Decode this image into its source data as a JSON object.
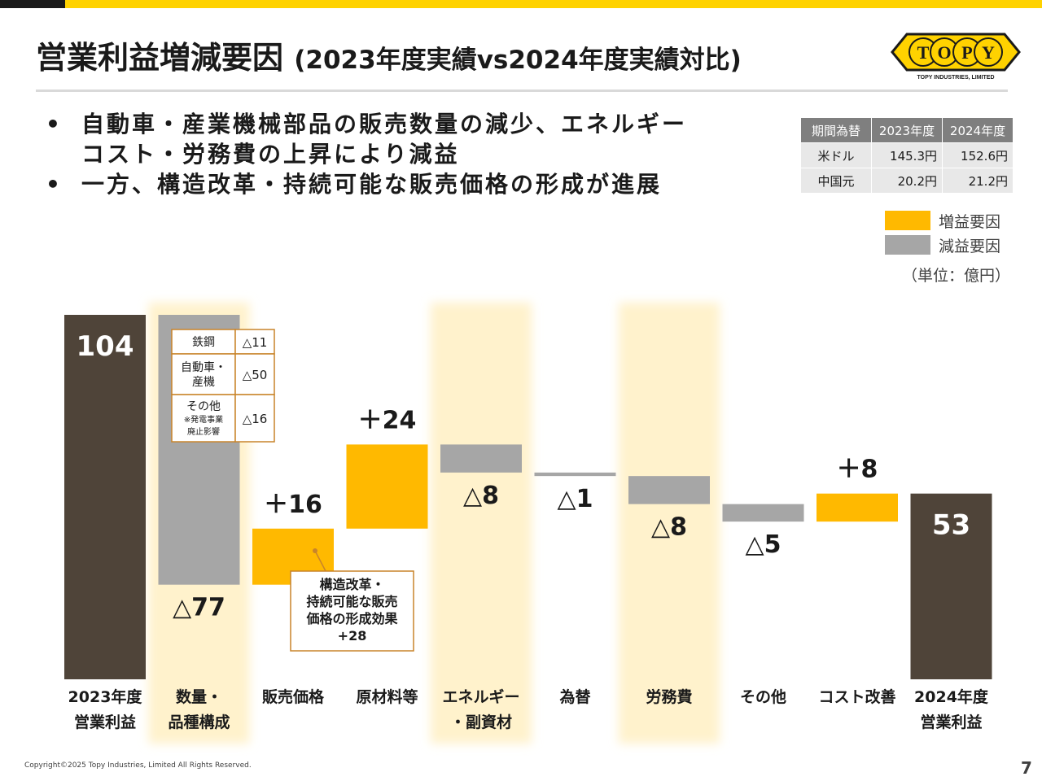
{
  "title": "営業利益増減要因",
  "subtitle": "(2023年度実績vs2024年度実績対比)",
  "logo": {
    "name": "TOPY",
    "tagline": "TOPY INDUSTRIES, LIMITED"
  },
  "bullets": [
    "自動車・産業機械部品の販売数量の減少、エネルギーコスト・労務費の上昇により減益",
    "一方、構造改革・持続可能な販売価格の形成が進展"
  ],
  "bullet_lines": [
    "自動車・産業機械部品の販売数量の減少、エネルギー",
    "コスト・労務費の上昇により減益",
    "一方、構造改革・持続可能な販売価格の形成が進展"
  ],
  "fx_table": {
    "headers": [
      "期間為替",
      "2023年度",
      "2024年度"
    ],
    "rows": [
      [
        "米ドル",
        "145.3円",
        "152.6円"
      ],
      [
        "中国元",
        "20.2円",
        "21.2円"
      ]
    ]
  },
  "legend": [
    {
      "label": "増益要因",
      "color": "#ffb900"
    },
    {
      "label": "減益要因",
      "color": "#a6a6a6"
    }
  ],
  "unit": "（単位：億円）",
  "colors": {
    "total": "#4f4439",
    "increase": "#ffb900",
    "decrease": "#a6a6a6",
    "highlight": "#fff2cc",
    "callout_border": "#c8842a"
  },
  "chart_data": {
    "type": "bar",
    "subtype": "waterfall",
    "categories": [
      [
        "2023年度",
        "営業利益"
      ],
      [
        "数量・",
        "品種構成"
      ],
      [
        "販売価格"
      ],
      [
        "原材料等"
      ],
      [
        "エネルギー",
        "・副資材"
      ],
      [
        "為替"
      ],
      [
        "労務費"
      ],
      [
        "その他"
      ],
      [
        "コスト改善"
      ],
      [
        "2024年度",
        "営業利益"
      ]
    ],
    "values": [
      104,
      -77,
      16,
      24,
      -8,
      -1,
      -8,
      -5,
      8,
      53
    ],
    "kinds": [
      "total",
      "decrease",
      "increase",
      "increase",
      "decrease",
      "decrease",
      "decrease",
      "decrease",
      "increase",
      "total"
    ],
    "value_labels": [
      "104",
      "△77",
      "＋16",
      "＋24",
      "△8",
      "△1",
      "△8",
      "△5",
      "＋8",
      "53"
    ],
    "highlighted_categories": [
      1,
      4,
      6
    ],
    "ylim": [
      0,
      104
    ],
    "breakdown": {
      "category": "数量・品種構成",
      "rows": [
        {
          "label": [
            "鉄鋼"
          ],
          "value": "△11"
        },
        {
          "label": [
            "自動車・",
            "産機"
          ],
          "value": "△50"
        },
        {
          "label": [
            "その他",
            "※発電事業",
            "廃止影響"
          ],
          "value": "△16"
        }
      ]
    },
    "callout": {
      "category": "販売価格",
      "lines": [
        "構造改革・",
        "持続可能な販売",
        "価格の形成効果",
        "+28"
      ]
    }
  },
  "footer": {
    "copyright": "Copyright©2025 Topy Industries, Limited All Rights Reserved.",
    "page": "7"
  }
}
